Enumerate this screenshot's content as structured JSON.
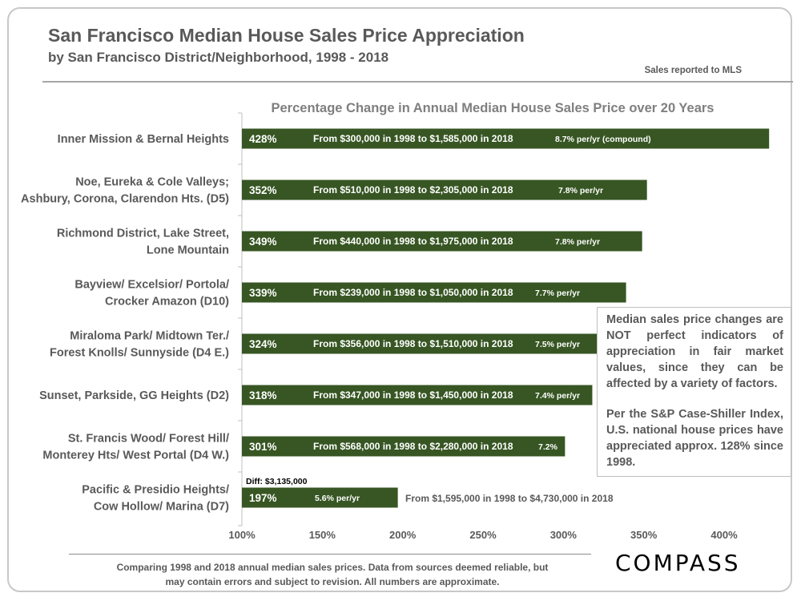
{
  "header": {
    "title": "San Francisco Median House Sales Price Appreciation",
    "subtitle": "by San Francisco District/Neighborhood, 1998 - 2018",
    "source": "Sales reported to MLS"
  },
  "note": {
    "paragraph1": "Median sales price changes are NOT perfect indicators of appreciation in fair market values, since they can be affected by a variety of factors.",
    "paragraph2": "Per the S&P Case-Shiller Index, U.S. national house prices have appreciated approx. 128% since 1998."
  },
  "footer": {
    "line1": "Comparing 1998 and 2018 annual median sales prices. Data from sources deemed reliable, but",
    "line2": "may contain errors and subject to revision. All numbers are approximate."
  },
  "logo": {
    "text": "COMPASS"
  },
  "chart_data": {
    "type": "bar",
    "orientation": "horizontal",
    "title": "Percentage Change in Annual Median House Sales Price over 20 Years",
    "xlim": [
      100,
      430
    ],
    "xticks": [
      100,
      150,
      200,
      250,
      300,
      350,
      400
    ],
    "xtick_labels": [
      "100%",
      "150%",
      "200%",
      "250%",
      "300%",
      "350%",
      "400%"
    ],
    "bar_color": "#375623",
    "categories": [
      [
        "Inner Mission & Bernal Heights"
      ],
      [
        "Noe, Eureka & Cole Valleys;",
        "Ashbury, Corona, Clarendon Hts. (D5)"
      ],
      [
        "Richmond District, Lake Street,",
        "Lone Mountain"
      ],
      [
        "Bayview/ Excelsior/ Portola/",
        "Crocker Amazon (D10)"
      ],
      [
        "Miraloma Park/ Midtown Ter./",
        "Forest Knolls/ Sunnyside (D4 E.)"
      ],
      [
        "Sunset, Parkside, GG Heights (D2)"
      ],
      [
        "St. Francis Wood/ Forest Hill/",
        "Monterey Hts/ West Portal (D4 W.)"
      ],
      [
        "Pacific & Presidio Heights/",
        "Cow Hollow/ Marina (D7)"
      ]
    ],
    "values": [
      428,
      352,
      349,
      339,
      324,
      318,
      301,
      197
    ],
    "value_labels": [
      "428%",
      "352%",
      "349%",
      "339%",
      "324%",
      "318%",
      "301%",
      "197%"
    ],
    "range_labels": [
      "From $300,000 in 1998 to $1,585,000 in 2018",
      "From $510,000 in 1998 to $2,305,000 in 2018",
      "From $440,000 in 1998 to $1,975,000 in 2018",
      "From $239,000 in 1998 to $1,050,000 in 2018",
      "From $356,000 in 1998 to $1,510,000 in 2018",
      "From $347,000 in 1998 to $1,450,000 in 2018",
      "From $568,000 in 1998 to $2,280,000 in 2018",
      "From $1,595,000 in 1998 to $4,730,000 in 2018"
    ],
    "rate_labels": [
      "8.7% per/yr (compound)",
      "7.8% per/yr",
      "7.8% per/yr",
      "7.7% per/yr",
      "7.5% per/yr",
      "7.4% per/yr",
      "7.2%",
      "5.6% per/yr"
    ],
    "annotations": [
      {
        "category_index": 7,
        "text": "Diff: $3,135,000"
      }
    ],
    "grid": false,
    "legend": "none"
  }
}
